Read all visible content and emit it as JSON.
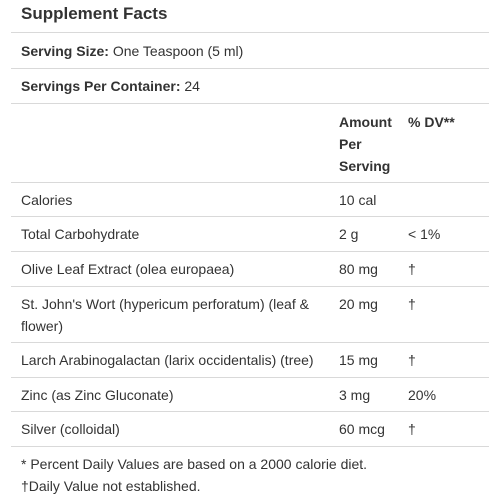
{
  "title": "Supplement Facts",
  "serving_size": {
    "label": "Serving Size:",
    "value": "One Teaspoon (5 ml)"
  },
  "servings_per_container": {
    "label": "Servings Per Container:",
    "value": "24"
  },
  "header": {
    "amount": "Amount Per Serving",
    "dv": "% DV**"
  },
  "rows": [
    {
      "name": "Calories",
      "amount": "10 cal",
      "dv": ""
    },
    {
      "name": "Total Carbohydrate",
      "amount": "2 g",
      "dv": "< 1%"
    },
    {
      "name": "Olive Leaf Extract (olea europaea)",
      "amount": "80 mg",
      "dv": "†"
    },
    {
      "name": "St. John's Wort (hypericum perforatum) (leaf & flower)",
      "amount": "20 mg",
      "dv": "†"
    },
    {
      "name": "Larch Arabinogalactan (larix occidentalis) (tree)",
      "amount": "15 mg",
      "dv": "†"
    },
    {
      "name": "Zinc (as Zinc Gluconate)",
      "amount": "3 mg",
      "dv": "20%"
    },
    {
      "name": "Silver (colloidal)",
      "amount": "60 mcg",
      "dv": "†"
    }
  ],
  "footnotes": [
    "* Percent Daily Values are based on a 2000 calorie diet.",
    "†Daily Value not established."
  ]
}
